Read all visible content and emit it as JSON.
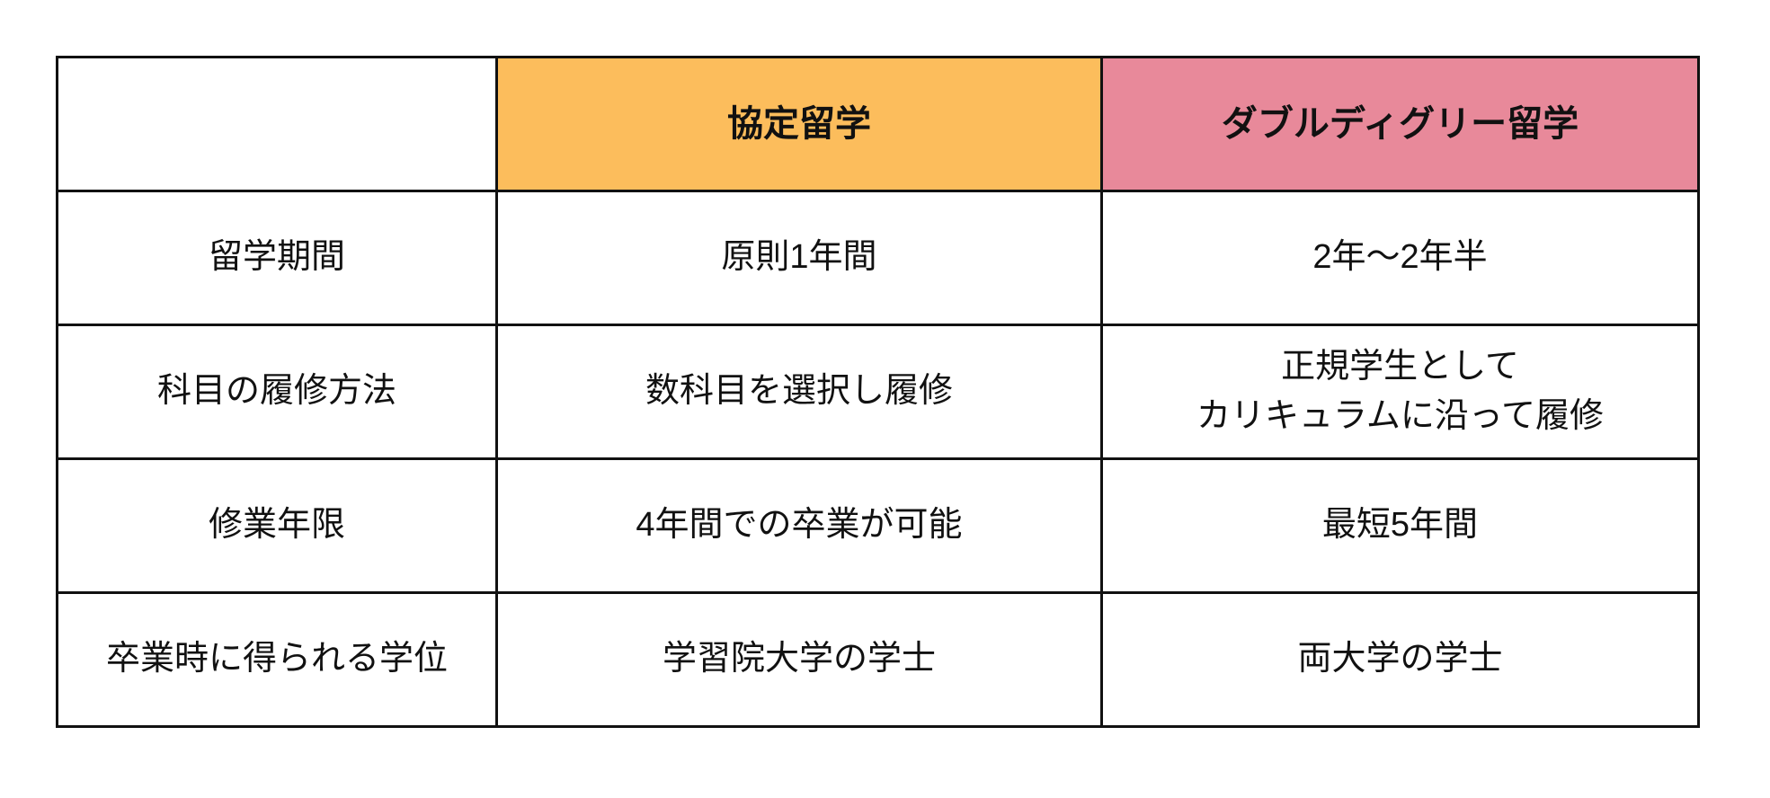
{
  "table": {
    "title": "study-abroad-program-comparison",
    "colors": {
      "kyotei_header_bg": "#fcbd5c",
      "double_header_bg": "#e8899a",
      "border": "#111111",
      "text": "#111111"
    },
    "header": {
      "blank": "",
      "kyotei": "協定留学",
      "double": "ダブルディグリー留学"
    },
    "rows": [
      {
        "label": "留学期間",
        "kyotei": "原則1年間",
        "double": "2年〜2年半"
      },
      {
        "label": "科目の履修方法",
        "kyotei": "数科目を選択し履修",
        "double": "正規学生として\nカリキュラムに沿って履修"
      },
      {
        "label": "修業年限",
        "kyotei": "4年間での卒業が可能",
        "double": "最短5年間"
      },
      {
        "label": "卒業時に得られる学位",
        "kyotei": "学習院大学の学士",
        "double": "両大学の学士"
      }
    ]
  }
}
